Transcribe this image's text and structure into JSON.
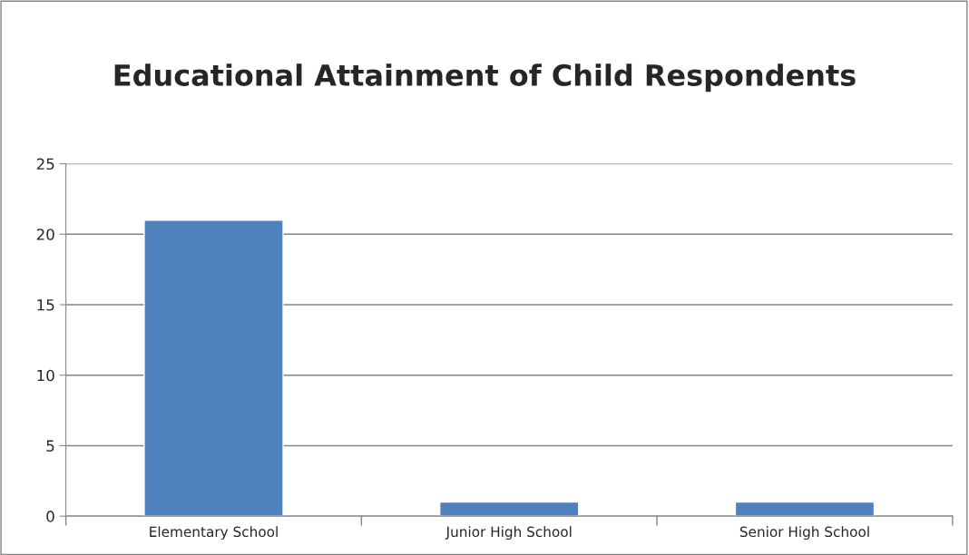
{
  "chart_data": {
    "type": "bar",
    "title": "Educational Attainment of Child Respondents",
    "categories": [
      "Elementary School",
      "Junior High School",
      "Senior High School"
    ],
    "values": [
      21,
      1,
      1
    ],
    "color": "#4f81bd",
    "ylim": [
      0,
      25
    ],
    "yticks": [
      0,
      5,
      10,
      15,
      20,
      25
    ],
    "grid": "y",
    "legend": false
  }
}
